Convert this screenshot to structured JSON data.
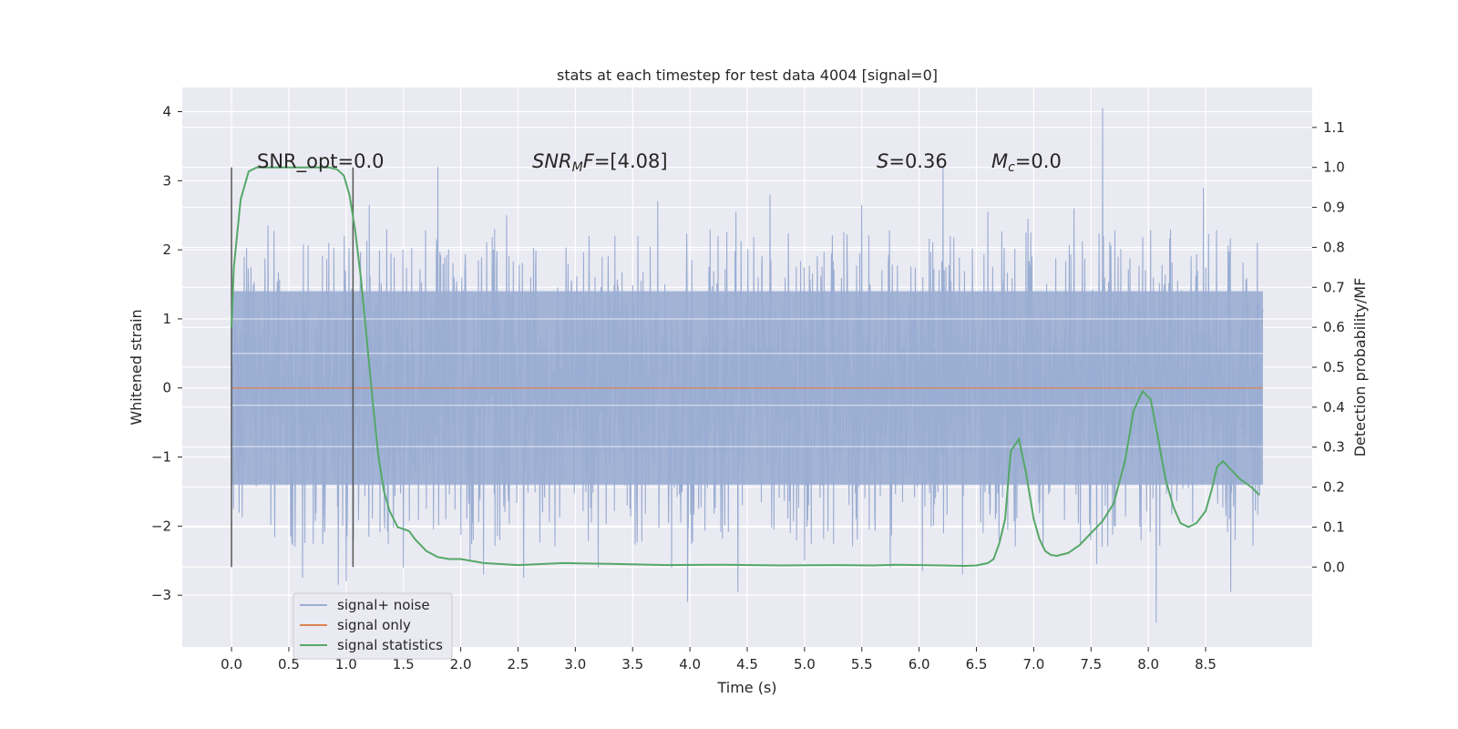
{
  "chart_data": {
    "type": "line",
    "title": "stats at each timestep for test data 4004 [signal=0]",
    "xlabel": "Time (s)",
    "ylabel": "Whitened strain",
    "y2label": "Detection probability/MF",
    "xlim": [
      -0.43,
      9.43
    ],
    "ylim": [
      -3.75,
      4.35
    ],
    "y2lim": [
      -0.2,
      1.2
    ],
    "x_ticks": [
      "0.0",
      "0.5",
      "1.0",
      "1.5",
      "2.0",
      "2.5",
      "3.0",
      "3.5",
      "4.0",
      "4.5",
      "5.0",
      "5.5",
      "6.0",
      "6.5",
      "7.0",
      "7.5",
      "8.0",
      "8.5"
    ],
    "y_ticks": [
      "4",
      "3",
      "2",
      "1",
      "0",
      "−1",
      "−2",
      "−3"
    ],
    "y2_ticks": [
      "1.1",
      "1.0",
      "0.9",
      "0.8",
      "0.7",
      "0.6",
      "0.5",
      "0.4",
      "0.3",
      "0.2",
      "0.1",
      "0.0"
    ],
    "grid": true,
    "legend_position": "lower-left",
    "annotations": {
      "snr_opt": "SNR_opt=0.0",
      "snr_mf_main": "SNR",
      "snr_mf_sub": "M",
      "snr_mf_f": "F",
      "snr_mf_value": "=[4.08]",
      "s_symbol": "S",
      "s_value": "=0.36",
      "mc_symbol": "M",
      "mc_sub": "c",
      "mc_value": "=0.0"
    },
    "vertical_markers": [
      0.0,
      1.06
    ],
    "series": [
      {
        "name": "signal+ noise",
        "color": "#9aadd2",
        "duration": 9.0,
        "band_low": -1.4,
        "band_high": 1.4,
        "extremes": [
          [
            0.11,
            1.9
          ],
          [
            0.32,
            2.35
          ],
          [
            0.62,
            -2.75
          ],
          [
            0.85,
            2.1
          ],
          [
            0.93,
            -2.85
          ],
          [
            1.0,
            -2.8
          ],
          [
            1.2,
            2.65
          ],
          [
            1.5,
            -2.6
          ],
          [
            1.8,
            3.2
          ],
          [
            2.08,
            -2.5
          ],
          [
            2.2,
            -2.7
          ],
          [
            2.4,
            2.5
          ],
          [
            2.55,
            2.95
          ],
          [
            2.55,
            -2.75
          ],
          [
            3.12,
            2.2
          ],
          [
            3.2,
            -2.6
          ],
          [
            3.72,
            2.7
          ],
          [
            3.84,
            -2.6
          ],
          [
            3.98,
            -3.1
          ],
          [
            4.4,
            2.55
          ],
          [
            4.42,
            -2.95
          ],
          [
            4.7,
            2.8
          ],
          [
            5.0,
            -2.5
          ],
          [
            5.5,
            2.65
          ],
          [
            5.75,
            -2.6
          ],
          [
            6.03,
            -2.65
          ],
          [
            6.21,
            3.2
          ],
          [
            6.38,
            -2.7
          ],
          [
            6.6,
            2.55
          ],
          [
            6.95,
            2.45
          ],
          [
            7.35,
            2.6
          ],
          [
            7.6,
            4.05
          ],
          [
            7.55,
            -2.55
          ],
          [
            8.07,
            -3.4
          ],
          [
            8.48,
            2.9
          ],
          [
            8.72,
            -2.95
          ],
          [
            8.95,
            2.1
          ]
        ]
      },
      {
        "name": "signal only",
        "color": "#dd8452",
        "values": [
          0.0,
          0.0
        ]
      },
      {
        "name": "signal statistics",
        "color": "#55a868",
        "x": [
          0.0,
          0.02,
          0.08,
          0.15,
          0.22,
          0.3,
          0.45,
          0.6,
          0.75,
          0.85,
          0.92,
          0.98,
          1.03,
          1.08,
          1.13,
          1.18,
          1.23,
          1.28,
          1.33,
          1.38,
          1.45,
          1.5,
          1.55,
          1.6,
          1.7,
          1.8,
          1.9,
          2.0,
          2.2,
          2.5,
          2.9,
          3.3,
          3.8,
          4.3,
          4.8,
          5.3,
          5.6,
          5.8,
          6.0,
          6.2,
          6.4,
          6.5,
          6.6,
          6.65,
          6.7,
          6.75,
          6.8,
          6.87,
          6.93,
          7.0,
          7.05,
          7.1,
          7.15,
          7.2,
          7.3,
          7.4,
          7.5,
          7.6,
          7.7,
          7.8,
          7.87,
          7.95,
          8.02,
          8.08,
          8.15,
          8.22,
          8.28,
          8.35,
          8.42,
          8.5,
          8.55,
          8.6,
          8.65,
          8.7,
          8.8,
          8.9,
          8.97
        ],
        "values": [
          0.6,
          0.75,
          0.92,
          0.99,
          1.0,
          1.0,
          1.0,
          1.0,
          1.0,
          1.0,
          0.995,
          0.98,
          0.93,
          0.84,
          0.72,
          0.57,
          0.42,
          0.28,
          0.19,
          0.14,
          0.1,
          0.095,
          0.09,
          0.07,
          0.04,
          0.025,
          0.02,
          0.02,
          0.01,
          0.005,
          0.01,
          0.008,
          0.005,
          0.006,
          0.004,
          0.005,
          0.004,
          0.006,
          0.005,
          0.004,
          0.003,
          0.004,
          0.01,
          0.02,
          0.06,
          0.12,
          0.29,
          0.32,
          0.24,
          0.12,
          0.07,
          0.04,
          0.03,
          0.028,
          0.035,
          0.055,
          0.085,
          0.115,
          0.16,
          0.27,
          0.39,
          0.44,
          0.42,
          0.33,
          0.22,
          0.15,
          0.11,
          0.1,
          0.11,
          0.14,
          0.19,
          0.25,
          0.265,
          0.25,
          0.22,
          0.2,
          0.18
        ]
      }
    ]
  }
}
